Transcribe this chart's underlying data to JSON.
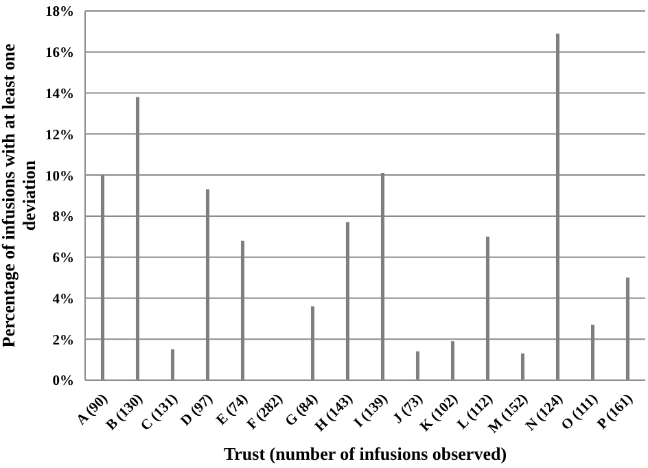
{
  "chart_data": {
    "type": "bar",
    "xlabel": "Trust (number of infusions observed)",
    "ylabel": "Percentage of infusions with at least one deviation",
    "categories": [
      "A (90)",
      "B (130)",
      "C (131)",
      "D (97)",
      "E (74)",
      "F (282)",
      "G (84)",
      "H (143)",
      "I (139)",
      "J (73)",
      "K (102)",
      "L (112)",
      "M (152)",
      "N (124)",
      "O (111)",
      "P (161)"
    ],
    "values": [
      10.0,
      13.8,
      1.5,
      9.3,
      6.8,
      0,
      3.6,
      7.7,
      10.1,
      1.4,
      1.9,
      7.0,
      1.3,
      16.9,
      2.7,
      5.0
    ],
    "color": "#7f7f7f",
    "ylim": [
      0,
      18
    ],
    "yticks": [
      {
        "value": 0,
        "label": "0%"
      },
      {
        "value": 2,
        "label": "2%"
      },
      {
        "value": 4,
        "label": "4%"
      },
      {
        "value": 6,
        "label": "6%"
      },
      {
        "value": 8,
        "label": "8%"
      },
      {
        "value": 10,
        "label": "10%"
      },
      {
        "value": 12,
        "label": "12%"
      },
      {
        "value": 14,
        "label": "14%"
      },
      {
        "value": 16,
        "label": "16%"
      },
      {
        "value": 18,
        "label": "18%"
      }
    ],
    "grid": "y",
    "legend": false
  }
}
